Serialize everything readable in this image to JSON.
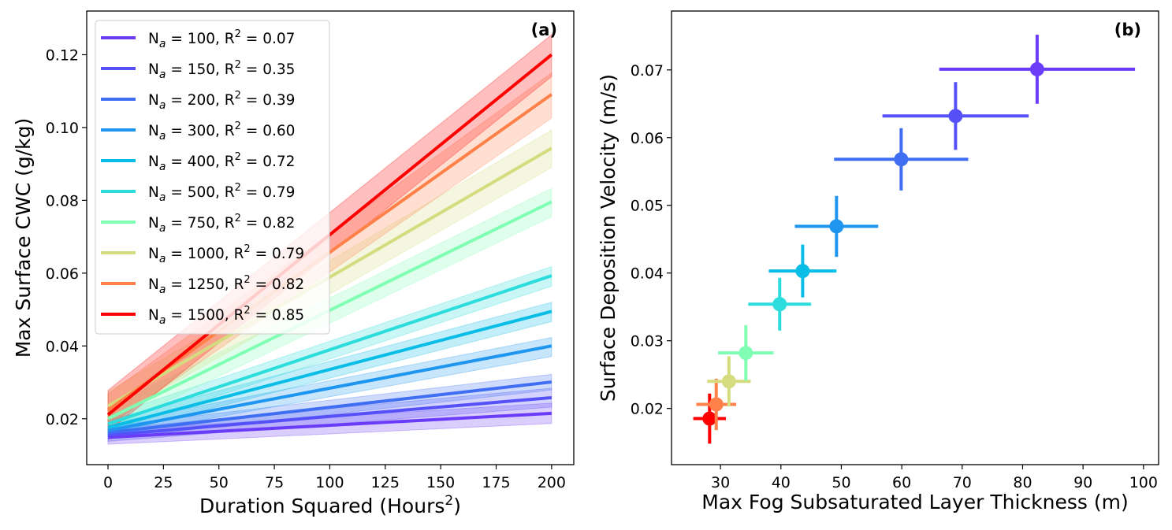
{
  "chart_data": [
    {
      "type": "line",
      "panel_label": "(a)",
      "xlabel_parts": [
        "Duration Squared (Hours",
        "2",
        ")"
      ],
      "ylabel": "Max Surface CWC (g/kg)",
      "xlim": [
        -9.6,
        210
      ],
      "ylim": [
        0.0074,
        0.132
      ],
      "xticks": [
        0,
        25,
        50,
        75,
        100,
        125,
        150,
        175,
        200
      ],
      "yticks": [
        0.02,
        0.04,
        0.06,
        0.08,
        0.1,
        0.12
      ],
      "ytick_labels": [
        "0.02",
        "0.04",
        "0.06",
        "0.08",
        "0.10",
        "0.12"
      ],
      "legend_position": "top-left",
      "legend_parts": {
        "symbol": "N",
        "subscript": "a",
        "eq": " = ",
        "sep": ", ",
        "r": "R",
        "sup": "2"
      },
      "series": [
        {
          "na": "100",
          "r2": "0.07",
          "color": "#6a3cf8",
          "x": [
            0,
            200
          ],
          "y": [
            0.0149,
            0.0215
          ],
          "lo": [
            0.013,
            0.0187
          ],
          "hi": [
            0.0168,
            0.0243
          ]
        },
        {
          "na": "150",
          "r2": "0.35",
          "color": "#5550f8",
          "x": [
            0,
            200
          ],
          "y": [
            0.0155,
            0.0258
          ],
          "lo": [
            0.0138,
            0.0232
          ],
          "hi": [
            0.0172,
            0.0284
          ]
        },
        {
          "na": "200",
          "r2": "0.39",
          "color": "#3f6ef2",
          "x": [
            0,
            200
          ],
          "y": [
            0.0162,
            0.0301
          ],
          "lo": [
            0.0145,
            0.0279
          ],
          "hi": [
            0.018,
            0.0322
          ]
        },
        {
          "na": "300",
          "r2": "0.60",
          "color": "#1e96f0",
          "x": [
            0,
            200
          ],
          "y": [
            0.0168,
            0.04
          ],
          "lo": [
            0.015,
            0.0371
          ],
          "hi": [
            0.0186,
            0.0423
          ]
        },
        {
          "na": "400",
          "r2": "0.72",
          "color": "#0abde6",
          "x": [
            0,
            200
          ],
          "y": [
            0.0176,
            0.0495
          ],
          "lo": [
            0.0156,
            0.0467
          ],
          "hi": [
            0.0196,
            0.052
          ]
        },
        {
          "na": "500",
          "r2": "0.79",
          "color": "#2ddcdc",
          "x": [
            0,
            200
          ],
          "y": [
            0.0186,
            0.0593
          ],
          "lo": [
            0.0164,
            0.0564
          ],
          "hi": [
            0.0208,
            0.0618
          ]
        },
        {
          "na": "750",
          "r2": "0.82",
          "color": "#80ffb4",
          "x": [
            0,
            200
          ],
          "y": [
            0.02,
            0.0796
          ],
          "lo": [
            0.017,
            0.0755
          ],
          "hi": [
            0.023,
            0.0833
          ]
        },
        {
          "na": "1000",
          "r2": "0.79",
          "color": "#d4dc7f",
          "x": [
            0,
            200
          ],
          "y": [
            0.0235,
            0.0943
          ],
          "lo": [
            0.0195,
            0.089
          ],
          "hi": [
            0.0275,
            0.0993
          ]
        },
        {
          "na": "1250",
          "r2": "0.82",
          "color": "#ff8048",
          "x": [
            0,
            200
          ],
          "y": [
            0.0224,
            0.1091
          ],
          "lo": [
            0.018,
            0.1026
          ],
          "hi": [
            0.0268,
            0.115
          ]
        },
        {
          "na": "1500",
          "r2": "0.85",
          "color": "#ff0000",
          "x": [
            0,
            200
          ],
          "y": [
            0.0211,
            0.12
          ],
          "lo": [
            0.0165,
            0.114
          ],
          "hi": [
            0.0278,
            0.1255
          ]
        }
      ]
    },
    {
      "type": "scatter",
      "panel_label": "(b)",
      "xlabel": "Max Fog Subsaturated Layer Thickness (m)",
      "ylabel": "Surface Deposition Velocity (m/s)",
      "xlim": [
        21.9,
        102.5
      ],
      "ylim": [
        0.0117,
        0.0787
      ],
      "xticks": [
        30,
        40,
        50,
        60,
        70,
        80,
        90,
        100
      ],
      "yticks": [
        0.02,
        0.03,
        0.04,
        0.05,
        0.06,
        0.07
      ],
      "ytick_labels": [
        "0.02",
        "0.03",
        "0.04",
        "0.05",
        "0.06",
        "0.07"
      ],
      "points": [
        {
          "na": "100",
          "color": "#6a3cf8",
          "x": 82.4,
          "y": 0.0701,
          "xerr": 16.2,
          "yerr": 0.0051
        },
        {
          "na": "150",
          "color": "#5550f8",
          "x": 68.9,
          "y": 0.0632,
          "xerr": 12.1,
          "yerr": 0.005
        },
        {
          "na": "200",
          "color": "#3f6ef2",
          "x": 59.9,
          "y": 0.0568,
          "xerr": 11.1,
          "yerr": 0.0046
        },
        {
          "na": "300",
          "color": "#1e96f0",
          "x": 49.2,
          "y": 0.0469,
          "xerr": 6.9,
          "yerr": 0.0045
        },
        {
          "na": "400",
          "color": "#0abde6",
          "x": 43.6,
          "y": 0.0403,
          "xerr": 5.6,
          "yerr": 0.0039
        },
        {
          "na": "500",
          "color": "#2ddcdc",
          "x": 39.8,
          "y": 0.0354,
          "xerr": 5.2,
          "yerr": 0.0039
        },
        {
          "na": "750",
          "color": "#80ffb4",
          "x": 34.2,
          "y": 0.0282,
          "xerr": 4.6,
          "yerr": 0.0041
        },
        {
          "na": "1000",
          "color": "#d4dc7f",
          "x": 31.4,
          "y": 0.024,
          "xerr": 3.6,
          "yerr": 0.0037
        },
        {
          "na": "1250",
          "color": "#ff8048",
          "x": 29.3,
          "y": 0.0206,
          "xerr": 3.3,
          "yerr": 0.0038
        },
        {
          "na": "1500",
          "color": "#ff0000",
          "x": 28.2,
          "y": 0.0185,
          "xerr": 2.7,
          "yerr": 0.0037
        }
      ]
    }
  ]
}
